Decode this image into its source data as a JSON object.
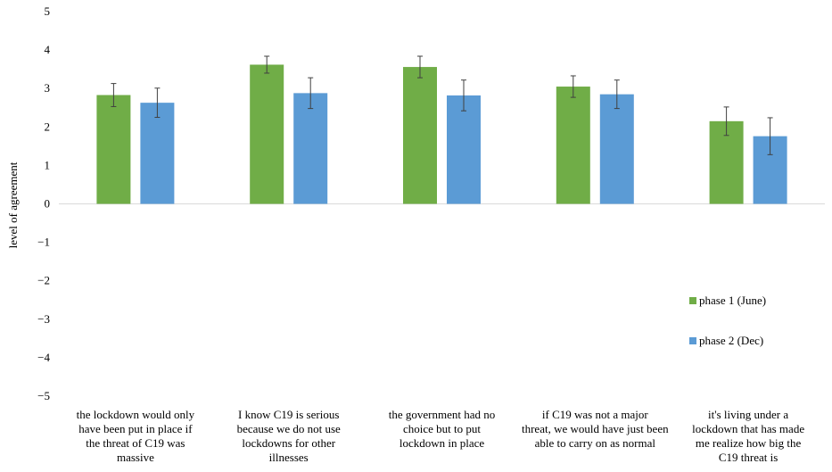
{
  "chart_data": {
    "type": "bar",
    "title": "",
    "xlabel": "",
    "ylabel": "level of agreement",
    "ylim": [
      -5,
      5
    ],
    "yticks": [
      "5",
      "4",
      "3",
      "2",
      "1",
      "0",
      "−1",
      "−2",
      "−3",
      "−4",
      "−5"
    ],
    "grid": false,
    "legend_position": "right",
    "categories": [
      "the lockdown would only have been put in place if the threat of C19 was massive",
      "I know C19 is serious because we do not use lockdowns for other illnesses",
      "the government had no choice but to put lockdown in place",
      "if C19 was not a major threat, we would have just been able to carry on as normal",
      "it's living under a lockdown that has made me realize how big the C19 threat is"
    ],
    "category_lines": [
      [
        "the lockdown would only",
        "have been put in place if",
        "the threat of C19 was",
        "massive"
      ],
      [
        "I know C19 is serious",
        "because we do not use",
        "lockdowns for other",
        "illnesses"
      ],
      [
        "the government had no",
        "choice but to put",
        "lockdown in place"
      ],
      [
        "if C19 was not a major",
        "threat, we would have just been",
        "able to carry on as normal"
      ],
      [
        "it's living under a",
        "lockdown that has made",
        "me realize how big the",
        "C19 threat is"
      ]
    ],
    "series": [
      {
        "name": "phase 1 (June)",
        "color": "#70ad47",
        "values": [
          2.83,
          3.62,
          3.56,
          3.05,
          2.15
        ],
        "error": [
          0.3,
          0.22,
          0.28,
          0.28,
          0.37
        ]
      },
      {
        "name": "phase 2 (Dec)",
        "color": "#5b9bd5",
        "values": [
          2.63,
          2.88,
          2.82,
          2.85,
          1.76
        ],
        "error": [
          0.38,
          0.4,
          0.4,
          0.37,
          0.48
        ]
      }
    ]
  }
}
